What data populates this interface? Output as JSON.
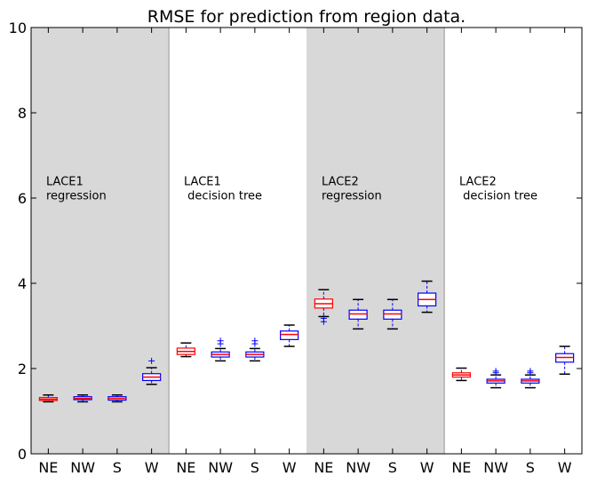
{
  "chart_data": {
    "type": "box",
    "title": "RMSE for prediction from region data.",
    "xlabel": "",
    "ylabel": "",
    "ylim": [
      0,
      10
    ],
    "yticks": [
      0,
      2,
      4,
      6,
      8,
      10
    ],
    "grid": false,
    "categories": [
      "NE",
      "NW",
      "S",
      "W",
      "NE",
      "NW",
      "S",
      "W",
      "NE",
      "NW",
      "S",
      "W",
      "NE",
      "NW",
      "S",
      "W"
    ],
    "groups": [
      {
        "label": "LACE1\nregression",
        "shaded": true,
        "start": 0,
        "end": 3
      },
      {
        "label": "LACE1\n decision tree",
        "shaded": false,
        "start": 4,
        "end": 7
      },
      {
        "label": "LACE2\nregression",
        "shaded": true,
        "start": 8,
        "end": 11
      },
      {
        "label": "LACE2\n decision tree",
        "shaded": false,
        "start": 12,
        "end": 15
      }
    ],
    "boxes": [
      {
        "min": 1.22,
        "q1": 1.25,
        "median": 1.28,
        "q3": 1.32,
        "max": 1.38,
        "outliers": [],
        "color": "#ff0000"
      },
      {
        "min": 1.22,
        "q1": 1.27,
        "median": 1.3,
        "q3": 1.34,
        "max": 1.38,
        "outliers": [],
        "color": "#0000ff"
      },
      {
        "min": 1.22,
        "q1": 1.26,
        "median": 1.3,
        "q3": 1.34,
        "max": 1.38,
        "outliers": [],
        "color": "#0000ff"
      },
      {
        "min": 1.63,
        "q1": 1.72,
        "median": 1.8,
        "q3": 1.88,
        "max": 2.02,
        "outliers": [
          2.18
        ],
        "color": "#0000ff"
      },
      {
        "min": 2.28,
        "q1": 2.33,
        "median": 2.4,
        "q3": 2.48,
        "max": 2.6,
        "outliers": [],
        "color": "#ff0000"
      },
      {
        "min": 2.18,
        "q1": 2.27,
        "median": 2.33,
        "q3": 2.39,
        "max": 2.47,
        "outliers": [
          2.58,
          2.65
        ],
        "color": "#0000ff"
      },
      {
        "min": 2.18,
        "q1": 2.27,
        "median": 2.33,
        "q3": 2.39,
        "max": 2.47,
        "outliers": [
          2.58,
          2.65
        ],
        "color": "#0000ff"
      },
      {
        "min": 2.52,
        "q1": 2.68,
        "median": 2.8,
        "q3": 2.88,
        "max": 3.02,
        "outliers": [],
        "color": "#0000ff"
      },
      {
        "min": 3.22,
        "q1": 3.42,
        "median": 3.52,
        "q3": 3.63,
        "max": 3.85,
        "outliers": [
          3.1,
          3.18
        ],
        "color": "#ff0000"
      },
      {
        "min": 2.93,
        "q1": 3.16,
        "median": 3.28,
        "q3": 3.37,
        "max": 3.62,
        "outliers": [],
        "color": "#0000ff"
      },
      {
        "min": 2.93,
        "q1": 3.16,
        "median": 3.28,
        "q3": 3.37,
        "max": 3.62,
        "outliers": [],
        "color": "#0000ff"
      },
      {
        "min": 3.32,
        "q1": 3.47,
        "median": 3.62,
        "q3": 3.77,
        "max": 4.05,
        "outliers": [],
        "color": "#0000ff"
      },
      {
        "min": 1.72,
        "q1": 1.8,
        "median": 1.85,
        "q3": 1.9,
        "max": 2.01,
        "outliers": [],
        "color": "#ff0000"
      },
      {
        "min": 1.55,
        "q1": 1.66,
        "median": 1.71,
        "q3": 1.75,
        "max": 1.85,
        "outliers": [
          1.9,
          1.94
        ],
        "color": "#0000ff"
      },
      {
        "min": 1.55,
        "q1": 1.66,
        "median": 1.71,
        "q3": 1.75,
        "max": 1.85,
        "outliers": [
          1.9,
          1.94
        ],
        "color": "#0000ff"
      },
      {
        "min": 1.87,
        "q1": 2.15,
        "median": 2.26,
        "q3": 2.35,
        "max": 2.52,
        "outliers": [],
        "color": "#0000ff"
      }
    ]
  }
}
